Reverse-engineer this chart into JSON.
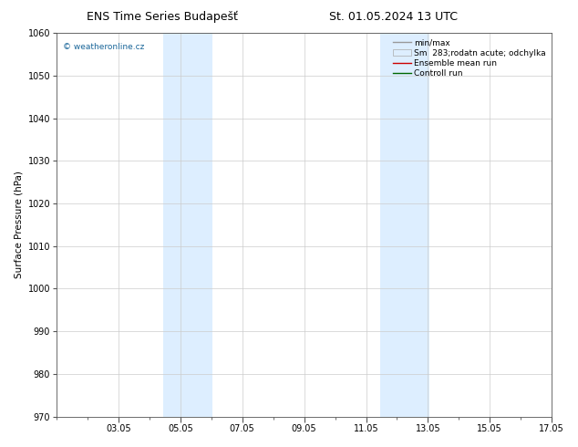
{
  "title_left": "ENS Time Series Budapešť",
  "title_right": "St. 01.05.2024 13 UTC",
  "ylabel": "Surface Pressure (hPa)",
  "ylim": [
    970,
    1060
  ],
  "yticks": [
    970,
    980,
    990,
    1000,
    1010,
    1020,
    1030,
    1040,
    1050,
    1060
  ],
  "xtick_labels": [
    "03.05",
    "05.05",
    "07.05",
    "09.05",
    "11.05",
    "13.05",
    "15.05",
    "17.05"
  ],
  "xtick_positions_days": [
    2,
    4,
    6,
    8,
    10,
    12,
    14,
    16
  ],
  "shaded_bands": [
    {
      "x_start_day": 3.458,
      "x_end_day": 5.042
    },
    {
      "x_start_day": 10.458,
      "x_end_day": 12.042
    }
  ],
  "shade_color": "#ddeeff",
  "watermark": "© weatheronline.cz",
  "watermark_color": "#1a6699",
  "background_color": "#ffffff",
  "grid_color": "#cccccc",
  "title_fontsize": 9,
  "axis_label_fontsize": 7.5,
  "tick_fontsize": 7,
  "legend_fontsize": 6.5,
  "total_days": 16
}
